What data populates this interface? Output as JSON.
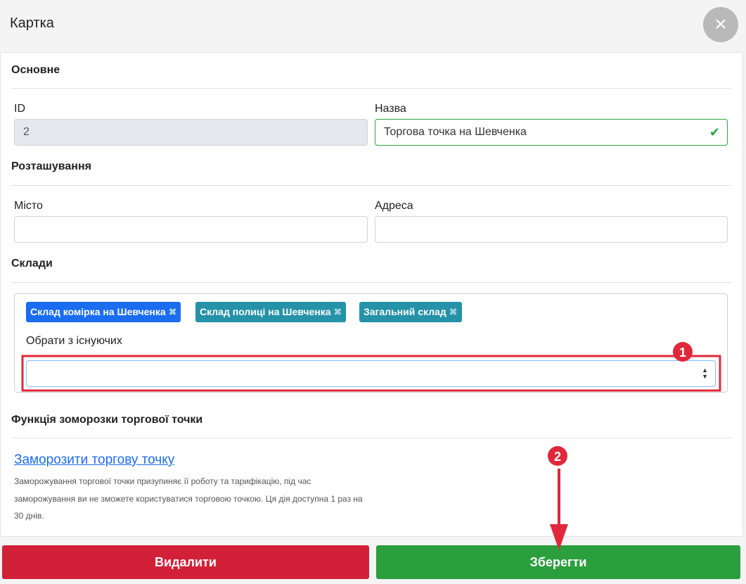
{
  "header": {
    "title": "Картка",
    "close_icon": "close-icon"
  },
  "sections": {
    "main": "Основне",
    "location": "Розташування",
    "warehouses": "Склади",
    "freeze": "Функція зоморозки торгової точки"
  },
  "fields": {
    "id": {
      "label": "ID",
      "value": "2"
    },
    "name": {
      "label": "Назва",
      "value": "Торгова точка на Шевченка"
    },
    "city": {
      "label": "Місто",
      "value": ""
    },
    "address": {
      "label": "Адреса",
      "value": ""
    }
  },
  "warehouses": {
    "tags": [
      {
        "label": "Склад комірка на Шевченка",
        "color": "#1a6cf0"
      },
      {
        "label": "Склад полиці на Шевченка",
        "color": "#2592a8"
      },
      {
        "label": "Загальний склад",
        "color": "#2592a8"
      }
    ],
    "select_label": "Обрати з існуючих",
    "select_value": ""
  },
  "freeze": {
    "link": "Заморозити торгову точку",
    "description": "Заморожування торгової точки призупиняє її роботу та тарифікацію, під час заморожування ви не зможете користуватися торговою точкою. Ця дія доступна 1 раз на 30 днів."
  },
  "buttons": {
    "delete": "Видалити",
    "save": "Зберегти",
    "delete_color": "#d22038",
    "save_color": "#2b9e3e"
  },
  "annotations": {
    "step1": "1",
    "step2": "2",
    "color": "#e0283a"
  }
}
